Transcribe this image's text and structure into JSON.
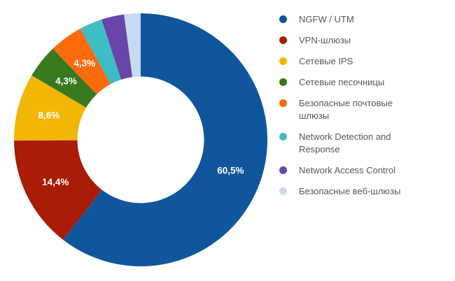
{
  "figure": {
    "background": "#FFFFFF"
  },
  "chart_data": {
    "type": "pie",
    "subtype": "donut",
    "title": "",
    "hole_ratio": 0.5,
    "start_angle_deg": 0,
    "direction": "clockwise",
    "label_radius_ratio": 0.75,
    "legend_position": "right",
    "grid": false,
    "categories": [
      "NGFW / UTM",
      "VPN-шлюзы",
      "Сетевые IPS",
      "Сетевые песочницы",
      "Безопасные почтовые шлюзы",
      "Network Detection and Response",
      "Network Access Control",
      "Безопасные веб-шлюзы"
    ],
    "values": [
      60.5,
      14.4,
      8.6,
      4.3,
      4.3,
      2.9,
      2.9,
      2.1
    ],
    "displayed_labels": [
      "60,5%",
      "14,4%",
      "8,6%",
      "4,3%",
      "4,3%",
      "",
      "",
      ""
    ],
    "colors": [
      "#10569D",
      "#A81C08",
      "#F2B606",
      "#38791D",
      "#FB6A0D",
      "#3FBDC4",
      "#6845A9",
      "#C6DAF2"
    ],
    "label_color": "#FFFFFF",
    "legend_text_color": "#55575C"
  }
}
